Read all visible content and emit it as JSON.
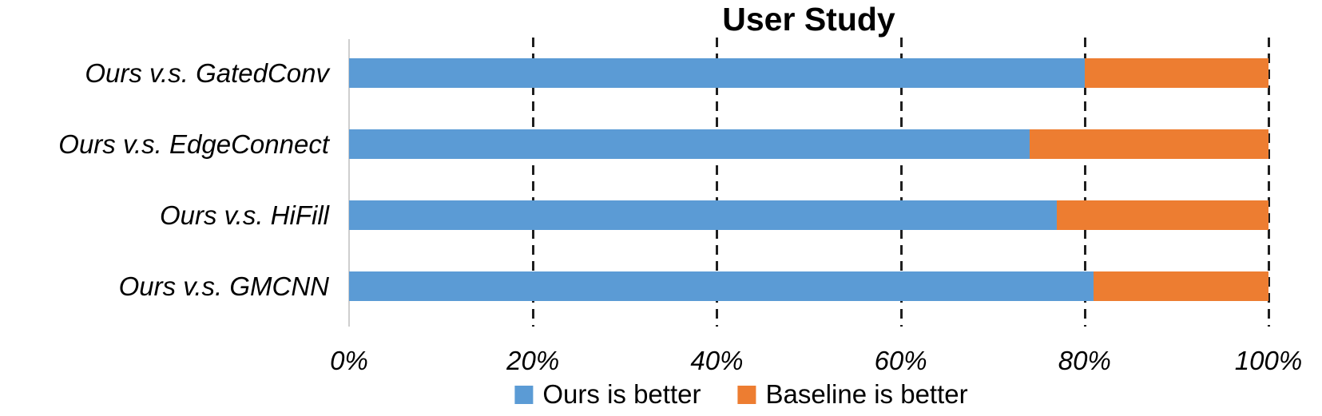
{
  "chart_data": {
    "type": "bar",
    "orientation": "horizontal",
    "stacked": true,
    "title": "User Study",
    "categories": [
      "Ours v.s. GatedConv",
      "Ours v.s. EdgeConnect",
      "Ours v.s. HiFill",
      "Ours v.s. GMCNN"
    ],
    "series": [
      {
        "name": "Ours is better",
        "color": "#5B9BD5",
        "values": [
          80,
          74,
          77,
          81
        ]
      },
      {
        "name": "Baseline is better",
        "color": "#ED7D31",
        "values": [
          20,
          26,
          23,
          19
        ]
      }
    ],
    "x_ticks": [
      "0%",
      "20%",
      "40%",
      "60%",
      "80%",
      "100%"
    ],
    "xlim": [
      0,
      100
    ],
    "xlabel": "",
    "ylabel": "",
    "grid": "dashed-vertical",
    "gridline_color": "#1f1f1f",
    "axis_line_color": "#cfcfcf",
    "legend_position": "bottom"
  }
}
